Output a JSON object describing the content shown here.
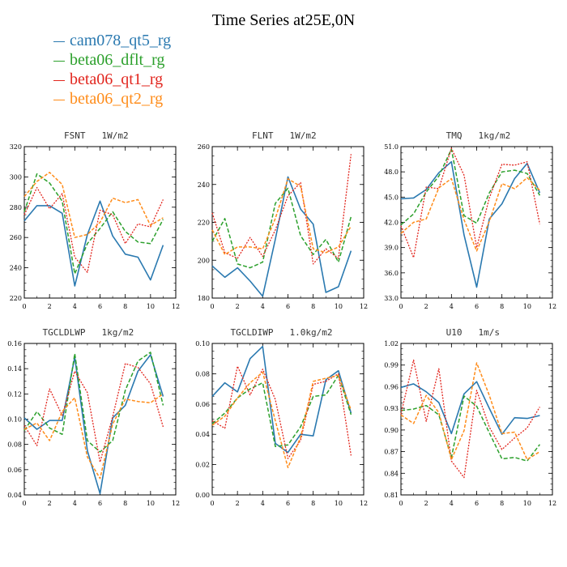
{
  "title": "Time Series at25E,0N",
  "legend": [
    {
      "name": "cam078_qt5_rg",
      "color": "#2a79b0"
    },
    {
      "name": "beta06_dflt_rg",
      "color": "#2ca02c"
    },
    {
      "name": "beta06_qt1_rg",
      "color": "#e2261e"
    },
    {
      "name": "beta06_qt2_rg",
      "color": "#ff8c1a"
    }
  ],
  "chart_data": [
    {
      "type": "line",
      "title": "FSNT",
      "units": "1W/m2",
      "x": [
        0,
        1,
        2,
        3,
        4,
        5,
        6,
        7,
        8,
        9,
        10,
        11
      ],
      "xlim": [
        0,
        12
      ],
      "xticks": [
        "0",
        "2",
        "4",
        "6",
        "8",
        "10",
        "12"
      ],
      "ylim": [
        220,
        320
      ],
      "yticks": [
        "220",
        "240",
        "260",
        "280",
        "300",
        "320"
      ],
      "series": [
        {
          "name": "cam078_qt5_rg",
          "values": [
            271,
            281,
            281,
            276,
            228,
            262,
            284,
            261,
            249,
            247,
            232,
            255
          ]
        },
        {
          "name": "beta06_dflt_rg",
          "values": [
            277,
            302,
            296,
            284,
            236,
            256,
            266,
            277,
            264,
            257,
            256,
            272
          ]
        },
        {
          "name": "beta06_qt1_rg",
          "values": [
            275,
            293,
            279,
            289,
            247,
            237,
            278,
            275,
            256,
            269,
            267,
            285
          ]
        },
        {
          "name": "beta06_qt2_rg",
          "values": [
            287,
            297,
            303,
            295,
            260,
            262,
            270,
            286,
            283,
            285,
            268,
            273
          ]
        }
      ]
    },
    {
      "type": "line",
      "title": "FLNT",
      "units": "1W/m2",
      "x": [
        0,
        1,
        2,
        3,
        4,
        5,
        6,
        7,
        8,
        9,
        10,
        11
      ],
      "xlim": [
        0,
        12
      ],
      "xticks": [
        "0",
        "2",
        "4",
        "6",
        "8",
        "10",
        "12"
      ],
      "ylim": [
        180,
        260
      ],
      "yticks": [
        "180",
        "200",
        "220",
        "240",
        "260"
      ],
      "series": [
        {
          "name": "cam078_qt5_rg",
          "values": [
            197,
            191,
            196,
            189,
            181,
            211,
            244,
            227,
            219,
            183,
            186,
            205
          ]
        },
        {
          "name": "beta06_dflt_rg",
          "values": [
            210,
            222,
            198,
            196,
            199,
            230,
            238,
            213,
            203,
            211,
            199,
            223
          ]
        },
        {
          "name": "beta06_qt1_rg",
          "values": [
            225,
            204,
            201,
            212,
            202,
            216,
            234,
            241,
            198,
            206,
            201,
            256
          ]
        },
        {
          "name": "beta06_qt2_rg",
          "values": [
            216,
            203,
            207,
            207,
            206,
            222,
            243,
            239,
            206,
            204,
            207,
            218
          ]
        }
      ]
    },
    {
      "type": "line",
      "title": "TMQ",
      "units": "1kg/m2",
      "x": [
        0,
        1,
        2,
        3,
        4,
        5,
        6,
        7,
        8,
        9,
        10,
        11
      ],
      "xlim": [
        0,
        12
      ],
      "xticks": [
        "0",
        "2",
        "4",
        "6",
        "8",
        "10",
        "12"
      ],
      "ylim": [
        33.0,
        51.0
      ],
      "yticks": [
        "33.0",
        "36.0",
        "39.0",
        "42.0",
        "45.0",
        "48.0",
        "51.0"
      ],
      "series": [
        {
          "name": "cam078_qt5_rg",
          "values": [
            44.8,
            44.9,
            45.9,
            47.9,
            49.2,
            40.5,
            34.3,
            42.4,
            44.2,
            47.2,
            49.0,
            45.5
          ]
        },
        {
          "name": "beta06_dflt_rg",
          "values": [
            41.7,
            43.0,
            45.6,
            47.5,
            50.7,
            42.8,
            41.9,
            45.5,
            48.0,
            48.2,
            47.8,
            45.2
          ]
        },
        {
          "name": "beta06_qt1_rg",
          "values": [
            41.6,
            37.8,
            46.2,
            46.0,
            50.8,
            47.6,
            39.0,
            44.9,
            48.9,
            48.8,
            49.2,
            41.8
          ]
        },
        {
          "name": "beta06_qt2_rg",
          "values": [
            40.7,
            42.0,
            42.4,
            46.1,
            47.2,
            42.3,
            38.6,
            42.1,
            46.6,
            46.0,
            47.3,
            45.8
          ]
        }
      ]
    },
    {
      "type": "line",
      "title": "TGCLDLWP",
      "units": "1kg/m2",
      "x": [
        0,
        1,
        2,
        3,
        4,
        5,
        6,
        7,
        8,
        9,
        10,
        11
      ],
      "xlim": [
        0,
        12
      ],
      "xticks": [
        "0",
        "2",
        "4",
        "6",
        "8",
        "10",
        "12"
      ],
      "ylim": [
        0.04,
        0.16
      ],
      "yticks": [
        "0.04",
        "0.06",
        "0.08",
        "0.10",
        "0.12",
        "0.14",
        "0.16"
      ],
      "series": [
        {
          "name": "cam078_qt5_rg",
          "values": [
            0.101,
            0.092,
            0.099,
            0.099,
            0.149,
            0.075,
            0.041,
            0.101,
            0.111,
            0.138,
            0.151,
            0.118
          ]
        },
        {
          "name": "beta06_dflt_rg",
          "values": [
            0.091,
            0.106,
            0.093,
            0.088,
            0.152,
            0.083,
            0.074,
            0.083,
            0.123,
            0.146,
            0.153,
            0.111
          ]
        },
        {
          "name": "beta06_qt1_rg",
          "values": [
            0.095,
            0.079,
            0.124,
            0.103,
            0.138,
            0.121,
            0.066,
            0.102,
            0.144,
            0.141,
            0.128,
            0.094
          ]
        },
        {
          "name": "beta06_qt2_rg",
          "values": [
            0.092,
            0.097,
            0.083,
            0.106,
            0.117,
            0.07,
            0.053,
            0.096,
            0.116,
            0.114,
            0.113,
            0.12
          ]
        }
      ]
    },
    {
      "type": "line",
      "title": "TGCLDIWP",
      "units": "1.0kg/m2",
      "x": [
        0,
        1,
        2,
        3,
        4,
        5,
        6,
        7,
        8,
        9,
        10,
        11
      ],
      "xlim": [
        0,
        12
      ],
      "xticks": [
        "0",
        "2",
        "4",
        "6",
        "8",
        "10",
        "12"
      ],
      "ylim": [
        0.0,
        0.1
      ],
      "yticks": [
        "0.00",
        "0.02",
        "0.04",
        "0.06",
        "0.08",
        "0.10"
      ],
      "series": [
        {
          "name": "cam078_qt5_rg",
          "values": [
            0.065,
            0.074,
            0.068,
            0.09,
            0.098,
            0.034,
            0.028,
            0.04,
            0.039,
            0.076,
            0.082,
            0.054
          ]
        },
        {
          "name": "beta06_dflt_rg",
          "values": [
            0.047,
            0.054,
            0.064,
            0.07,
            0.074,
            0.032,
            0.033,
            0.045,
            0.065,
            0.066,
            0.079,
            0.053
          ]
        },
        {
          "name": "beta06_qt1_rg",
          "values": [
            0.049,
            0.044,
            0.085,
            0.066,
            0.083,
            0.063,
            0.024,
            0.036,
            0.073,
            0.075,
            0.08,
            0.026
          ]
        },
        {
          "name": "beta06_qt2_rg",
          "values": [
            0.046,
            0.052,
            0.064,
            0.074,
            0.081,
            0.049,
            0.018,
            0.038,
            0.075,
            0.077,
            0.079,
            0.056
          ]
        }
      ]
    },
    {
      "type": "line",
      "title": "U10",
      "units": "1m/s",
      "x": [
        0,
        1,
        2,
        3,
        4,
        5,
        6,
        7,
        8,
        9,
        10,
        11
      ],
      "xlim": [
        0,
        12
      ],
      "xticks": [
        "0",
        "2",
        "4",
        "6",
        "8",
        "10",
        "12"
      ],
      "ylim": [
        0.81,
        1.02
      ],
      "yticks": [
        "0.81",
        "0.84",
        "0.87",
        "0.90",
        "0.93",
        "0.96",
        "0.99",
        "1.02"
      ],
      "series": [
        {
          "name": "cam078_qt5_rg",
          "values": [
            0.959,
            0.964,
            0.953,
            0.938,
            0.895,
            0.95,
            0.967,
            0.93,
            0.894,
            0.917,
            0.916,
            0.92
          ]
        },
        {
          "name": "beta06_dflt_rg",
          "values": [
            0.927,
            0.929,
            0.934,
            0.921,
            0.862,
            0.947,
            0.933,
            0.896,
            0.86,
            0.862,
            0.857,
            0.88
          ]
        },
        {
          "name": "beta06_qt1_rg",
          "values": [
            0.922,
            0.997,
            0.912,
            0.985,
            0.857,
            0.834,
            0.955,
            0.904,
            0.873,
            0.889,
            0.903,
            0.932
          ]
        },
        {
          "name": "beta06_qt2_rg",
          "values": [
            0.921,
            0.909,
            0.948,
            0.924,
            0.859,
            0.899,
            0.993,
            0.948,
            0.895,
            0.897,
            0.859,
            0.87
          ]
        }
      ]
    }
  ]
}
